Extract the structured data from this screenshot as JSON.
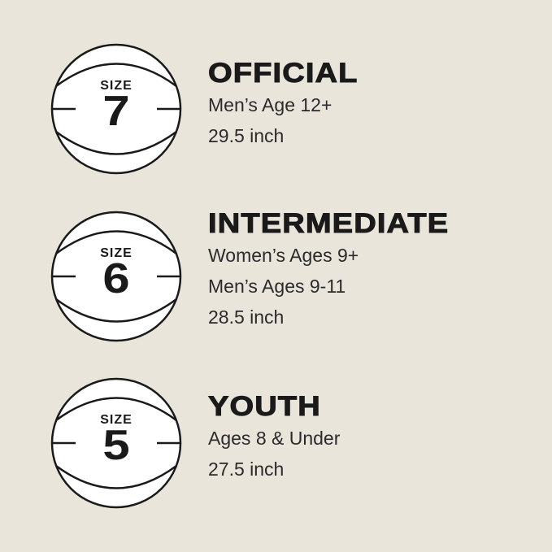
{
  "sizes": [
    {
      "label": "SIZE",
      "number": "7",
      "title": "OFFICIAL",
      "lines": [
        "Men’s Age 12+",
        "29.5 inch"
      ]
    },
    {
      "label": "SIZE",
      "number": "6",
      "title": "INTERMEDIATE",
      "lines": [
        "Women’s Ages 9+",
        "Men’s Ages 9-11",
        "28.5 inch"
      ]
    },
    {
      "label": "SIZE",
      "number": "5",
      "title": "YOUTH",
      "lines": [
        "Ages 8 & Under",
        "27.5 inch"
      ]
    }
  ],
  "colors": {
    "background": "#e9e5db",
    "ball": "#ffffff",
    "ink": "#1a1a1a"
  },
  "icon": "basketball-icon"
}
